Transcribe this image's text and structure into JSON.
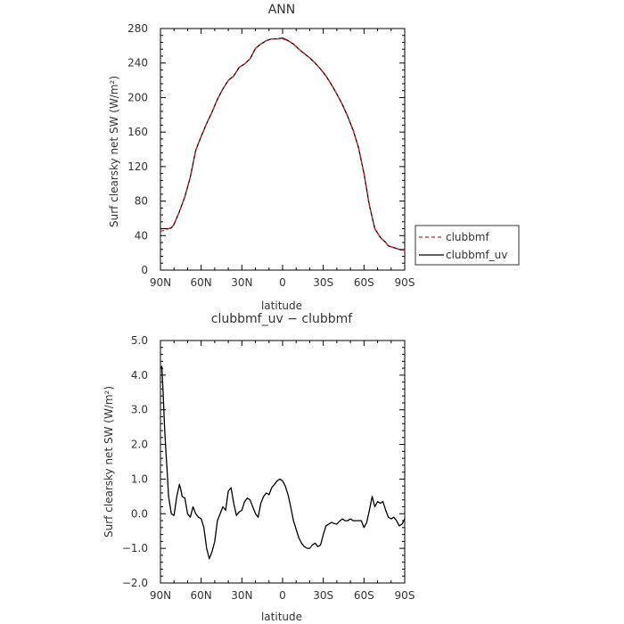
{
  "chart_data": [
    {
      "type": "line",
      "title": "ANN",
      "xlabel": "latitude",
      "ylabel": "Surf clearsky net SW (W/m²)",
      "xlim": [
        90,
        -90
      ],
      "ylim": [
        0,
        280
      ],
      "x_ticks": [
        "90N",
        "60N",
        "30N",
        "0",
        "30S",
        "60S",
        "90S"
      ],
      "y_ticks": [
        "0",
        "40",
        "80",
        "120",
        "160",
        "200",
        "240",
        "280"
      ],
      "legend_position": "right",
      "series": [
        {
          "name": "clubbmf",
          "color": "#cc2222",
          "style": "dashed",
          "x": [
            90,
            87,
            84,
            82,
            80,
            76,
            72,
            68,
            64,
            60,
            56,
            52,
            48,
            44,
            40,
            36,
            32,
            28,
            24,
            20,
            16,
            12,
            8,
            4,
            0,
            -4,
            -8,
            -12,
            -16,
            -20,
            -24,
            -28,
            -32,
            -36,
            -40,
            -44,
            -48,
            -52,
            -56,
            -60,
            -64,
            -68,
            -72,
            -74,
            -76,
            -78,
            -80,
            -82,
            -84,
            -86,
            -90
          ],
          "y": [
            45,
            46,
            48,
            49,
            53,
            68,
            85,
            108,
            139,
            155,
            170,
            183,
            198,
            210,
            220,
            225,
            235,
            239,
            245,
            257,
            262,
            266,
            268,
            268,
            268,
            266,
            262,
            256,
            251,
            246,
            240,
            233,
            225,
            215,
            204,
            192,
            178,
            162,
            142,
            112,
            75,
            48,
            38,
            35,
            32,
            28,
            27,
            26,
            25,
            24,
            23
          ]
        },
        {
          "name": "clubbmf_uv",
          "color": "#000000",
          "style": "solid",
          "x": [
            90,
            87,
            84,
            82,
            80,
            76,
            72,
            68,
            64,
            60,
            56,
            52,
            48,
            44,
            40,
            36,
            32,
            28,
            24,
            20,
            16,
            12,
            8,
            4,
            0,
            -4,
            -8,
            -12,
            -16,
            -20,
            -24,
            -28,
            -32,
            -36,
            -40,
            -44,
            -48,
            -52,
            -56,
            -60,
            -64,
            -68,
            -72,
            -74,
            -76,
            -78,
            -80,
            -82,
            -84,
            -86,
            -90
          ],
          "y": [
            48,
            48,
            48,
            49,
            53,
            68,
            85,
            108,
            139,
            155,
            170,
            183,
            198,
            210,
            220,
            225,
            235,
            239,
            245,
            257,
            262,
            266,
            268,
            268,
            269,
            266,
            262,
            256,
            251,
            246,
            240,
            233,
            225,
            215,
            204,
            192,
            178,
            162,
            142,
            112,
            75,
            48,
            38,
            35,
            32,
            28,
            27,
            26,
            25,
            24,
            23
          ]
        }
      ]
    },
    {
      "type": "line",
      "title": "clubbmf_uv − clubbmf",
      "xlabel": "latitude",
      "ylabel": "Surf clearsky net SW (W/m²)",
      "xlim": [
        90,
        -90
      ],
      "ylim": [
        -2.0,
        5.0
      ],
      "x_ticks": [
        "90N",
        "60N",
        "30N",
        "0",
        "30S",
        "60S",
        "90S"
      ],
      "y_ticks": [
        "−2.0",
        "−1.0",
        "0.0",
        "1.0",
        "2.0",
        "3.0",
        "4.0",
        "5.0"
      ],
      "series": [
        {
          "color": "#000000",
          "style": "solid",
          "x": [
            90,
            89,
            88,
            87,
            86,
            85,
            84,
            82,
            80,
            78,
            76,
            75,
            74,
            72,
            70,
            68,
            66,
            64,
            62,
            60,
            58,
            56,
            54,
            52,
            50,
            48,
            46,
            44,
            42,
            40,
            38,
            36,
            34,
            32,
            30,
            28,
            26,
            24,
            22,
            20,
            18,
            16,
            14,
            12,
            10,
            8,
            6,
            4,
            2,
            0,
            -2,
            -4,
            -6,
            -8,
            -10,
            -12,
            -14,
            -16,
            -18,
            -20,
            -22,
            -24,
            -26,
            -28,
            -30,
            -32,
            -34,
            -36,
            -38,
            -40,
            -42,
            -44,
            -46,
            -48,
            -50,
            -52,
            -54,
            -56,
            -58,
            -60,
            -62,
            -64,
            -66,
            -68,
            -70,
            -72,
            -74,
            -76,
            -78,
            -80,
            -82,
            -84,
            -86,
            -88,
            -90
          ],
          "y": [
            4.2,
            4.25,
            3.5,
            2.5,
            1.8,
            1.2,
            0.5,
            0.0,
            -0.05,
            0.5,
            0.85,
            0.7,
            0.5,
            0.45,
            0.0,
            -0.1,
            0.2,
            0.0,
            -0.1,
            -0.15,
            -0.4,
            -1.0,
            -1.3,
            -1.1,
            -0.8,
            -0.2,
            0.0,
            0.2,
            0.1,
            0.65,
            0.75,
            0.3,
            -0.05,
            0.05,
            0.1,
            0.35,
            0.45,
            0.4,
            0.2,
            0.0,
            -0.1,
            0.3,
            0.5,
            0.6,
            0.55,
            0.75,
            0.85,
            0.95,
            1.0,
            0.95,
            0.8,
            0.55,
            0.2,
            -0.2,
            -0.45,
            -0.7,
            -0.85,
            -0.95,
            -1.0,
            -1.0,
            -0.9,
            -0.85,
            -0.95,
            -0.9,
            -0.6,
            -0.35,
            -0.3,
            -0.25,
            -0.28,
            -0.3,
            -0.22,
            -0.15,
            -0.2,
            -0.2,
            -0.15,
            -0.2,
            -0.2,
            -0.2,
            -0.2,
            -0.4,
            -0.25,
            0.1,
            0.5,
            0.2,
            0.35,
            0.3,
            0.35,
            0.1,
            -0.1,
            -0.15,
            -0.1,
            -0.2,
            -0.35,
            -0.3,
            -0.15
          ]
        }
      ]
    }
  ]
}
